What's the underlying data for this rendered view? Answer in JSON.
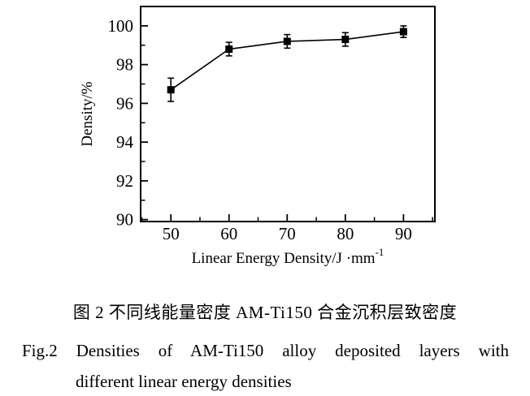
{
  "chart_data": {
    "type": "line",
    "series": [
      {
        "name": "AM-Ti150 deposited layer density",
        "x": [
          50,
          60,
          70,
          80,
          90
        ],
        "y": [
          96.7,
          98.8,
          99.2,
          99.3,
          99.7
        ],
        "yerr": [
          0.6,
          0.35,
          0.35,
          0.35,
          0.3
        ],
        "marker": "filled-square",
        "color": "#000000"
      }
    ],
    "title": "",
    "xlabel": {
      "base": "Linear Energy Density/J ·mm",
      "superscript": "-1"
    },
    "ylabel": "Density/%",
    "xticks": [
      50,
      60,
      70,
      80,
      90
    ],
    "xticks_minor": [
      45,
      55,
      65,
      75,
      85,
      95
    ],
    "yticks": [
      90,
      92,
      94,
      96,
      98,
      100
    ],
    "yticks_minor": [
      91,
      93,
      95,
      97,
      99
    ],
    "xlim": [
      44.8,
      95.4
    ],
    "ylim": [
      89.9,
      101.0
    ],
    "grid": false,
    "legend": null,
    "frame": "full-box",
    "axis_color": "#000000",
    "background": "#ffffff"
  },
  "captions": {
    "chinese": "图 2 不同线能量密度 AM-Ti150 合金沉积层致密度",
    "english_line1": "Fig.2 Densities of AM-Ti150 alloy deposited layers with",
    "english_line2": "different linear energy densities"
  }
}
